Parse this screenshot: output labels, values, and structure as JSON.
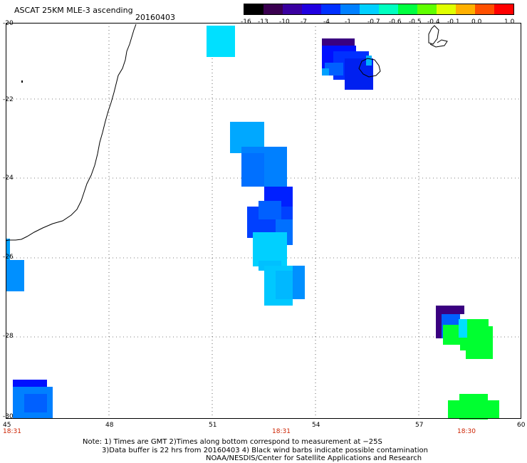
{
  "header": {
    "title": "ASCAT 25KM MLE-3 ascending",
    "date": "20160403"
  },
  "colorbar": {
    "labels": [
      "-16",
      "-13",
      "-10",
      "-7",
      "-4",
      "-1",
      "-0.7",
      "-0.6",
      "-0.5",
      "-0.4",
      "-0.1",
      "0.0",
      "1.0"
    ],
    "colors": [
      "#000000",
      "#3a0050",
      "#3a00a0",
      "#2000e0",
      "#0030ff",
      "#0080ff",
      "#00d0ff",
      "#00ffc0",
      "#00ff40",
      "#60ff00",
      "#e0ff00",
      "#ffb000",
      "#ff5000",
      "#ff0000"
    ]
  },
  "axes": {
    "lat_labels": [
      "-20",
      "-22",
      "-24",
      "-26",
      "-28",
      "-30"
    ],
    "lon_labels": [
      "45",
      "48",
      "51",
      "54",
      "57",
      "60"
    ],
    "time_labels": [
      "18:31",
      "18:31",
      "18:30"
    ]
  },
  "note": {
    "line1": "Note: 1) Times are GMT 2)Times along bottom correspond to measurement at −25S",
    "line2": "3)Data buffer is 22 hrs from 20160403 4) Black wind barbs indicate possible contamination",
    "line3": "NOAA/NESDIS/Center for Satellite Applications and Research"
  },
  "swath_colors": {
    "dark_purple": "#3a0080",
    "blue": "#0030ff",
    "medium_blue": "#0060ff",
    "sky_blue": "#0090ff",
    "light_blue": "#00b8ff",
    "cyan": "#00e0ff",
    "green": "#00ff30"
  }
}
